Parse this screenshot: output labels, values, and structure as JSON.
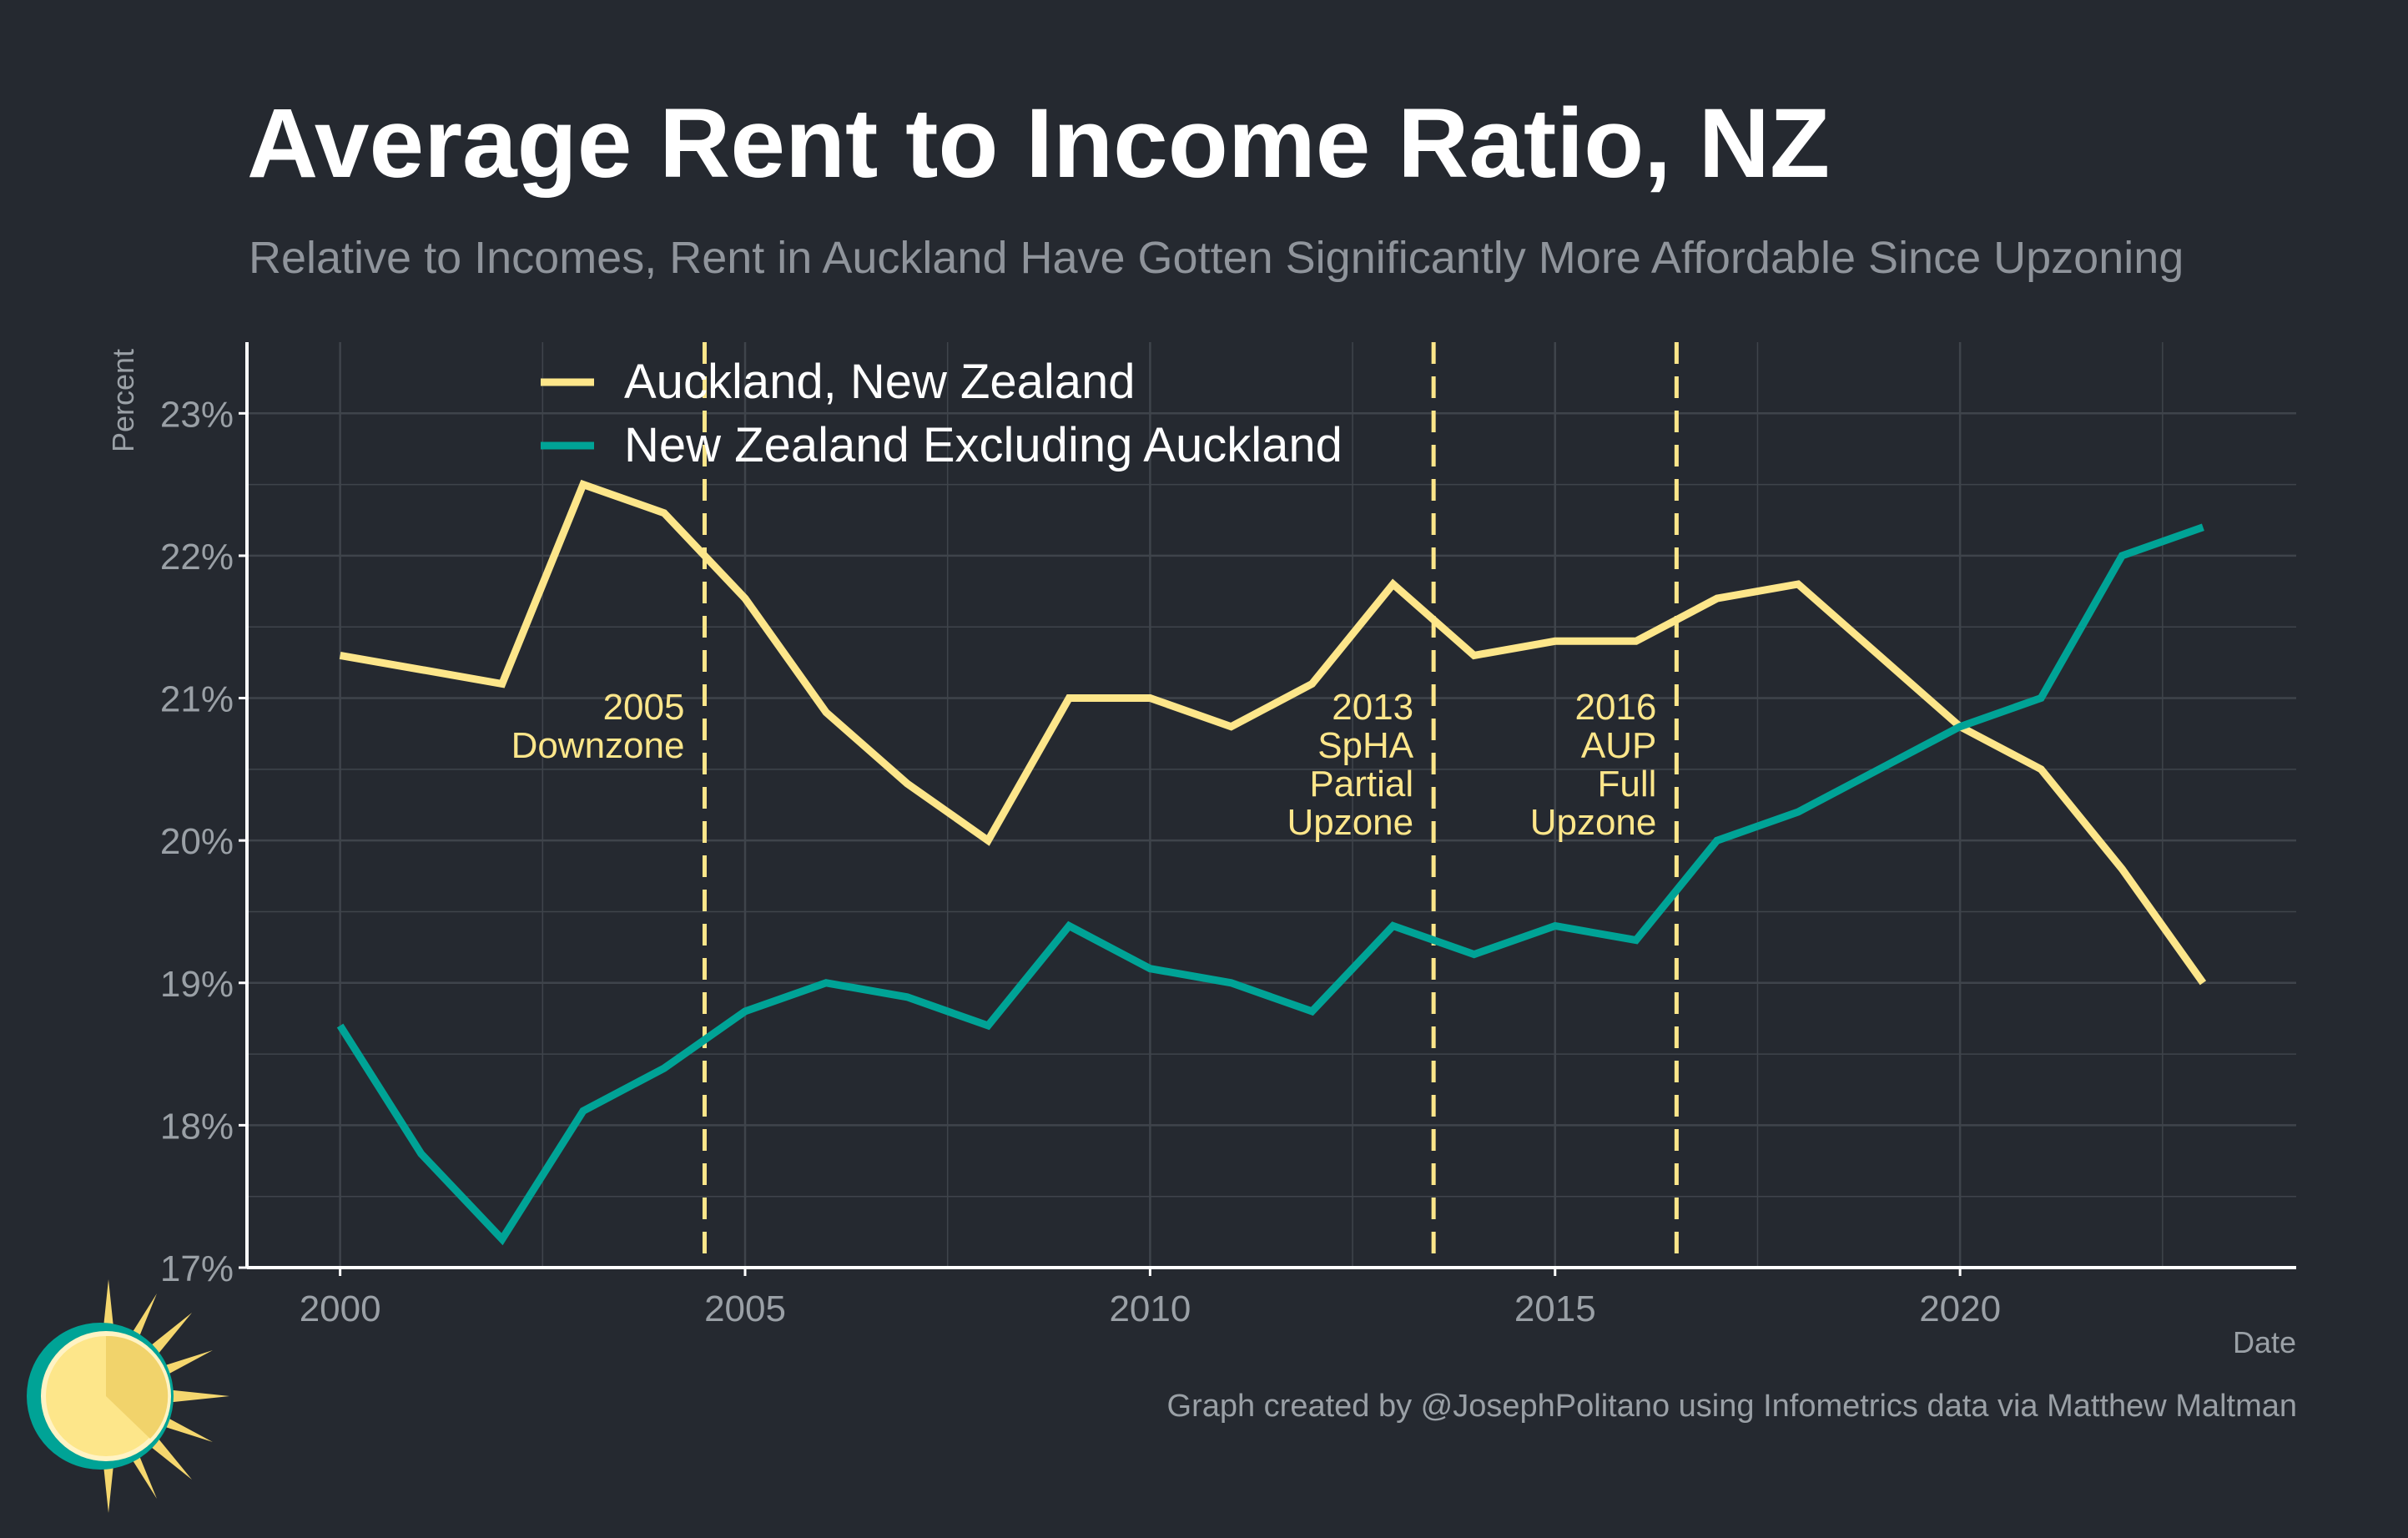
{
  "title": "Average Rent to Income Ratio, NZ",
  "subtitle": "Relative to Incomes, Rent in Auckland Have Gotten Significantly More Affordable Since Upzoning",
  "caption": "Graph created by @JosephPolitano using Infometrics data via Matthew Maltman",
  "logo_icon": "sun-logo-icon",
  "colors": {
    "background": "#252930",
    "auckland": "#fde68a",
    "rest_of_nz": "#00a396",
    "grid": "#3f444b",
    "axis_text": "#9aa0a6"
  },
  "chart_data": {
    "type": "line",
    "xlabel": "Date",
    "ylabel": "Percent",
    "xlim": [
      1998.85,
      2024.15
    ],
    "ylim": [
      17,
      23.5
    ],
    "x_ticks": [
      2000,
      2005,
      2010,
      2015,
      2020
    ],
    "x_tick_labels": [
      "2000",
      "2005",
      "2010",
      "2015",
      "2020"
    ],
    "y_ticks": [
      17,
      18,
      19,
      20,
      21,
      22,
      23
    ],
    "y_tick_labels": [
      "17%",
      "18%",
      "19%",
      "20%",
      "21%",
      "22%",
      "23%"
    ],
    "grid": true,
    "legend_position": "top-left",
    "series": [
      {
        "name": "Auckland, New Zealand",
        "color": "#fde68a",
        "x": [
          2000,
          2001,
          2002,
          2003,
          2004,
          2005,
          2006,
          2007,
          2008,
          2009,
          2010,
          2011,
          2012,
          2013,
          2014,
          2015,
          2016,
          2017,
          2018,
          2019,
          2020,
          2021,
          2022,
          2023
        ],
        "values": [
          21.3,
          21.2,
          21.1,
          22.5,
          22.3,
          21.7,
          20.9,
          20.4,
          20.0,
          21.0,
          21.0,
          20.8,
          21.1,
          21.8,
          21.3,
          21.4,
          21.4,
          21.7,
          21.8,
          21.3,
          20.8,
          20.5,
          19.8,
          19.0
        ]
      },
      {
        "name": "New Zealand Excluding Auckland",
        "color": "#00a396",
        "x": [
          2000,
          2001,
          2002,
          2003,
          2004,
          2005,
          2006,
          2007,
          2008,
          2009,
          2010,
          2011,
          2012,
          2013,
          2014,
          2015,
          2016,
          2017,
          2018,
          2019,
          2020,
          2021,
          2022,
          2023
        ],
        "values": [
          18.7,
          17.8,
          17.2,
          18.1,
          18.4,
          18.8,
          19.0,
          18.9,
          18.7,
          19.4,
          19.1,
          19.0,
          18.8,
          19.4,
          19.2,
          19.4,
          19.3,
          20.0,
          20.2,
          20.5,
          20.8,
          21.0,
          22.0,
          22.2
        ]
      }
    ],
    "annotations": [
      {
        "x": 2004.5,
        "label_lines": [
          "2005",
          "Downzone"
        ],
        "label_top_y": 20.85
      },
      {
        "x": 2013.5,
        "label_lines": [
          "2013",
          "SpHA",
          "Partial",
          "Upzone"
        ],
        "label_top_y": 20.85
      },
      {
        "x": 2016.5,
        "label_lines": [
          "2016",
          "AUP",
          "Full",
          "Upzone"
        ],
        "label_top_y": 20.85
      }
    ]
  }
}
